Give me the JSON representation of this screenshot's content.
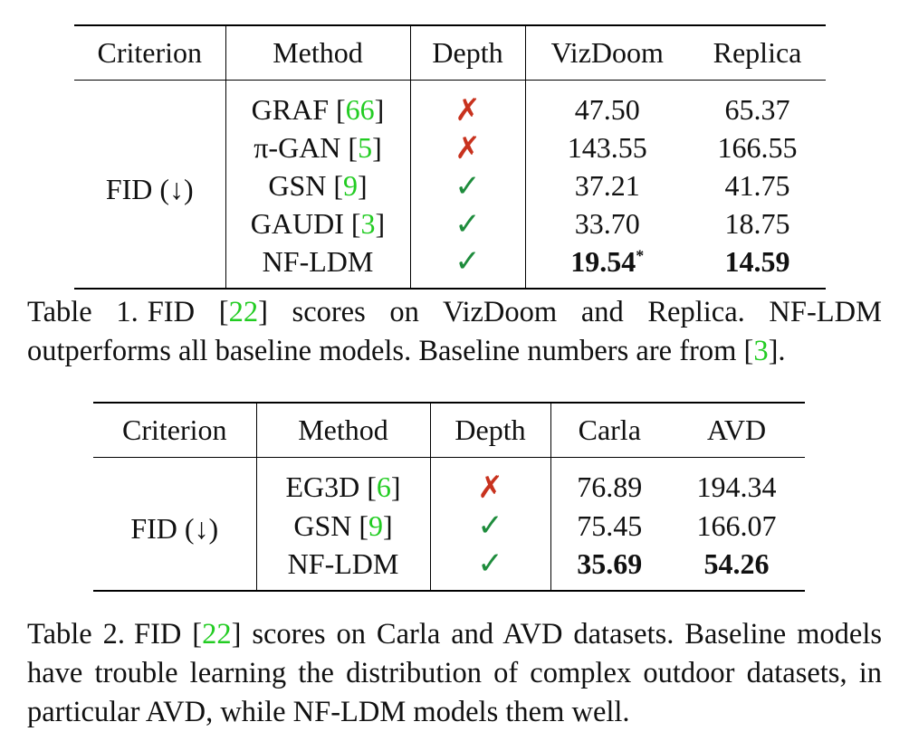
{
  "table1": {
    "headers": [
      "Criterion",
      "Method",
      "Depth",
      "VizDoom",
      "Replica"
    ],
    "criterion": "FID (↓)",
    "rows": [
      {
        "method": "GRAF",
        "cite": "66",
        "depth": "✗",
        "depth_ok": false,
        "v1": "47.50",
        "v2": "65.37",
        "v1_bold": false,
        "v2_bold": false,
        "v1_sup": ""
      },
      {
        "method": "π-GAN",
        "cite": "5",
        "depth": "✗",
        "depth_ok": false,
        "v1": "143.55",
        "v2": "166.55",
        "v1_bold": false,
        "v2_bold": false,
        "v1_sup": ""
      },
      {
        "method": "GSN",
        "cite": "9",
        "depth": "✓",
        "depth_ok": true,
        "v1": "37.21",
        "v2": "41.75",
        "v1_bold": false,
        "v2_bold": false,
        "v1_sup": ""
      },
      {
        "method": "GAUDI",
        "cite": "3",
        "depth": "✓",
        "depth_ok": true,
        "v1": "33.70",
        "v2": "18.75",
        "v1_bold": false,
        "v2_bold": false,
        "v1_sup": ""
      },
      {
        "method": "NF-LDM",
        "cite": "",
        "depth": "✓",
        "depth_ok": true,
        "v1": "19.54",
        "v2": "14.59",
        "v1_bold": true,
        "v2_bold": true,
        "v1_sup": "*"
      }
    ],
    "caption": {
      "label": "Table 1.",
      "pre": "FID [",
      "cite1": "22",
      "mid": "] scores on VizDoom and Replica.  NF-LDM outperforms all baseline models. Baseline numbers are from [",
      "cite2": "3",
      "post": "]."
    }
  },
  "table2": {
    "headers": [
      "Criterion",
      "Method",
      "Depth",
      "Carla",
      "AVD"
    ],
    "criterion": "FID (↓)",
    "rows": [
      {
        "method": "EG3D",
        "cite": "6",
        "depth": "✗",
        "depth_ok": false,
        "v1": "76.89",
        "v2": "194.34",
        "v1_bold": false,
        "v2_bold": false,
        "v1_sup": ""
      },
      {
        "method": "GSN",
        "cite": "9",
        "depth": "✓",
        "depth_ok": true,
        "v1": "75.45",
        "v2": "166.07",
        "v1_bold": false,
        "v2_bold": false,
        "v1_sup": ""
      },
      {
        "method": "NF-LDM",
        "cite": "",
        "depth": "✓",
        "depth_ok": true,
        "v1": "35.69",
        "v2": "54.26",
        "v1_bold": true,
        "v2_bold": true,
        "v1_sup": ""
      }
    ],
    "caption": {
      "label": "Table 2.",
      "pre": "FID [",
      "cite1": "22",
      "post": "] scores on Carla and AVD datasets.  Baseline models have trouble learning the distribution of complex outdoor datasets, in particular AVD, while NF-LDM models them well."
    }
  },
  "colors": {
    "cross": "#c8321e",
    "check": "#1e8c3c",
    "citation": "#22cc22"
  }
}
